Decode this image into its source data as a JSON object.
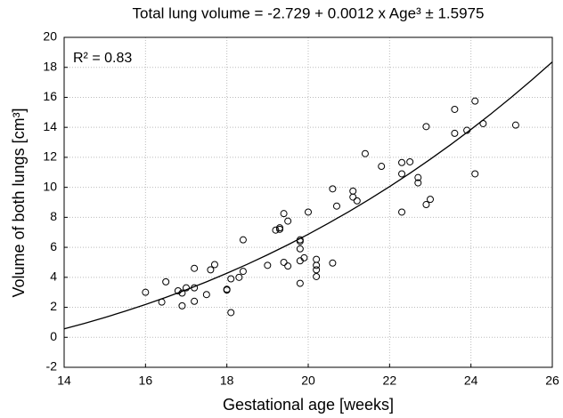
{
  "chart_data": {
    "type": "scatter",
    "title": "Total lung volume = -2.729 + 0.0012 x Age³ ± 1.5975",
    "annotation": "R² = 0.83",
    "x_label": "Gestational age [weeks]",
    "y_label": "Volume of both lungs [cm³]",
    "xlim": [
      14,
      26
    ],
    "ylim": [
      -2,
      20
    ],
    "xticks": [
      14,
      16,
      18,
      20,
      22,
      24,
      26
    ],
    "yticks": [
      -2,
      0,
      2,
      4,
      6,
      8,
      10,
      12,
      14,
      16,
      18,
      20
    ],
    "grid": true,
    "series": [
      {
        "type": "scatter",
        "color": "#000000",
        "x": [
          16.0,
          16.4,
          16.5,
          16.8,
          16.9,
          16.9,
          17.0,
          17.2,
          17.2,
          17.2,
          17.5,
          17.6,
          17.7,
          18.0,
          18.0,
          18.1,
          18.1,
          18.3,
          18.4,
          18.4,
          19.0,
          19.2,
          19.3,
          19.3,
          19.4,
          19.4,
          19.5,
          19.5,
          19.8,
          19.8,
          19.8,
          19.8,
          19.8,
          19.9,
          20.0,
          20.2,
          20.2,
          20.2,
          20.2,
          20.6,
          20.6,
          20.7,
          21.1,
          21.1,
          21.2,
          21.4,
          21.8,
          22.3,
          22.3,
          22.3,
          22.5,
          22.7,
          22.7,
          22.9,
          22.9,
          23.0,
          23.6,
          23.6,
          23.9,
          24.1,
          24.1,
          24.3,
          25.1
        ],
        "values": [
          3.0,
          2.35,
          3.7,
          3.1,
          2.1,
          2.95,
          3.3,
          2.4,
          3.3,
          4.6,
          2.85,
          4.5,
          4.85,
          3.2,
          3.15,
          3.9,
          1.65,
          4.0,
          4.4,
          6.5,
          4.8,
          7.15,
          7.3,
          7.2,
          8.25,
          5.0,
          4.75,
          7.75,
          6.5,
          6.4,
          5.9,
          5.1,
          3.6,
          5.3,
          8.35,
          5.2,
          4.8,
          4.5,
          4.05,
          9.9,
          4.95,
          8.75,
          9.75,
          9.35,
          9.1,
          12.25,
          11.4,
          11.65,
          10.9,
          8.35,
          11.7,
          10.65,
          10.3,
          14.05,
          8.85,
          9.2,
          15.2,
          13.6,
          13.8,
          15.75,
          10.9,
          14.25,
          14.15
        ]
      },
      {
        "type": "line",
        "color": "#000000",
        "x": [
          14,
          14.5,
          15,
          15.5,
          16,
          16.5,
          17,
          17.5,
          18,
          18.5,
          19,
          19.5,
          20,
          20.5,
          21,
          21.5,
          22,
          22.5,
          23,
          23.5,
          24,
          24.5,
          25,
          25.5,
          26
        ],
        "values": [
          0.564,
          0.929,
          1.321,
          1.74,
          2.186,
          2.662,
          3.167,
          3.702,
          4.269,
          4.869,
          5.502,
          6.169,
          6.871,
          7.609,
          8.384,
          9.197,
          10.049,
          10.94,
          11.871,
          12.844,
          13.86,
          14.918,
          16.021,
          17.169,
          18.362
        ]
      }
    ]
  }
}
